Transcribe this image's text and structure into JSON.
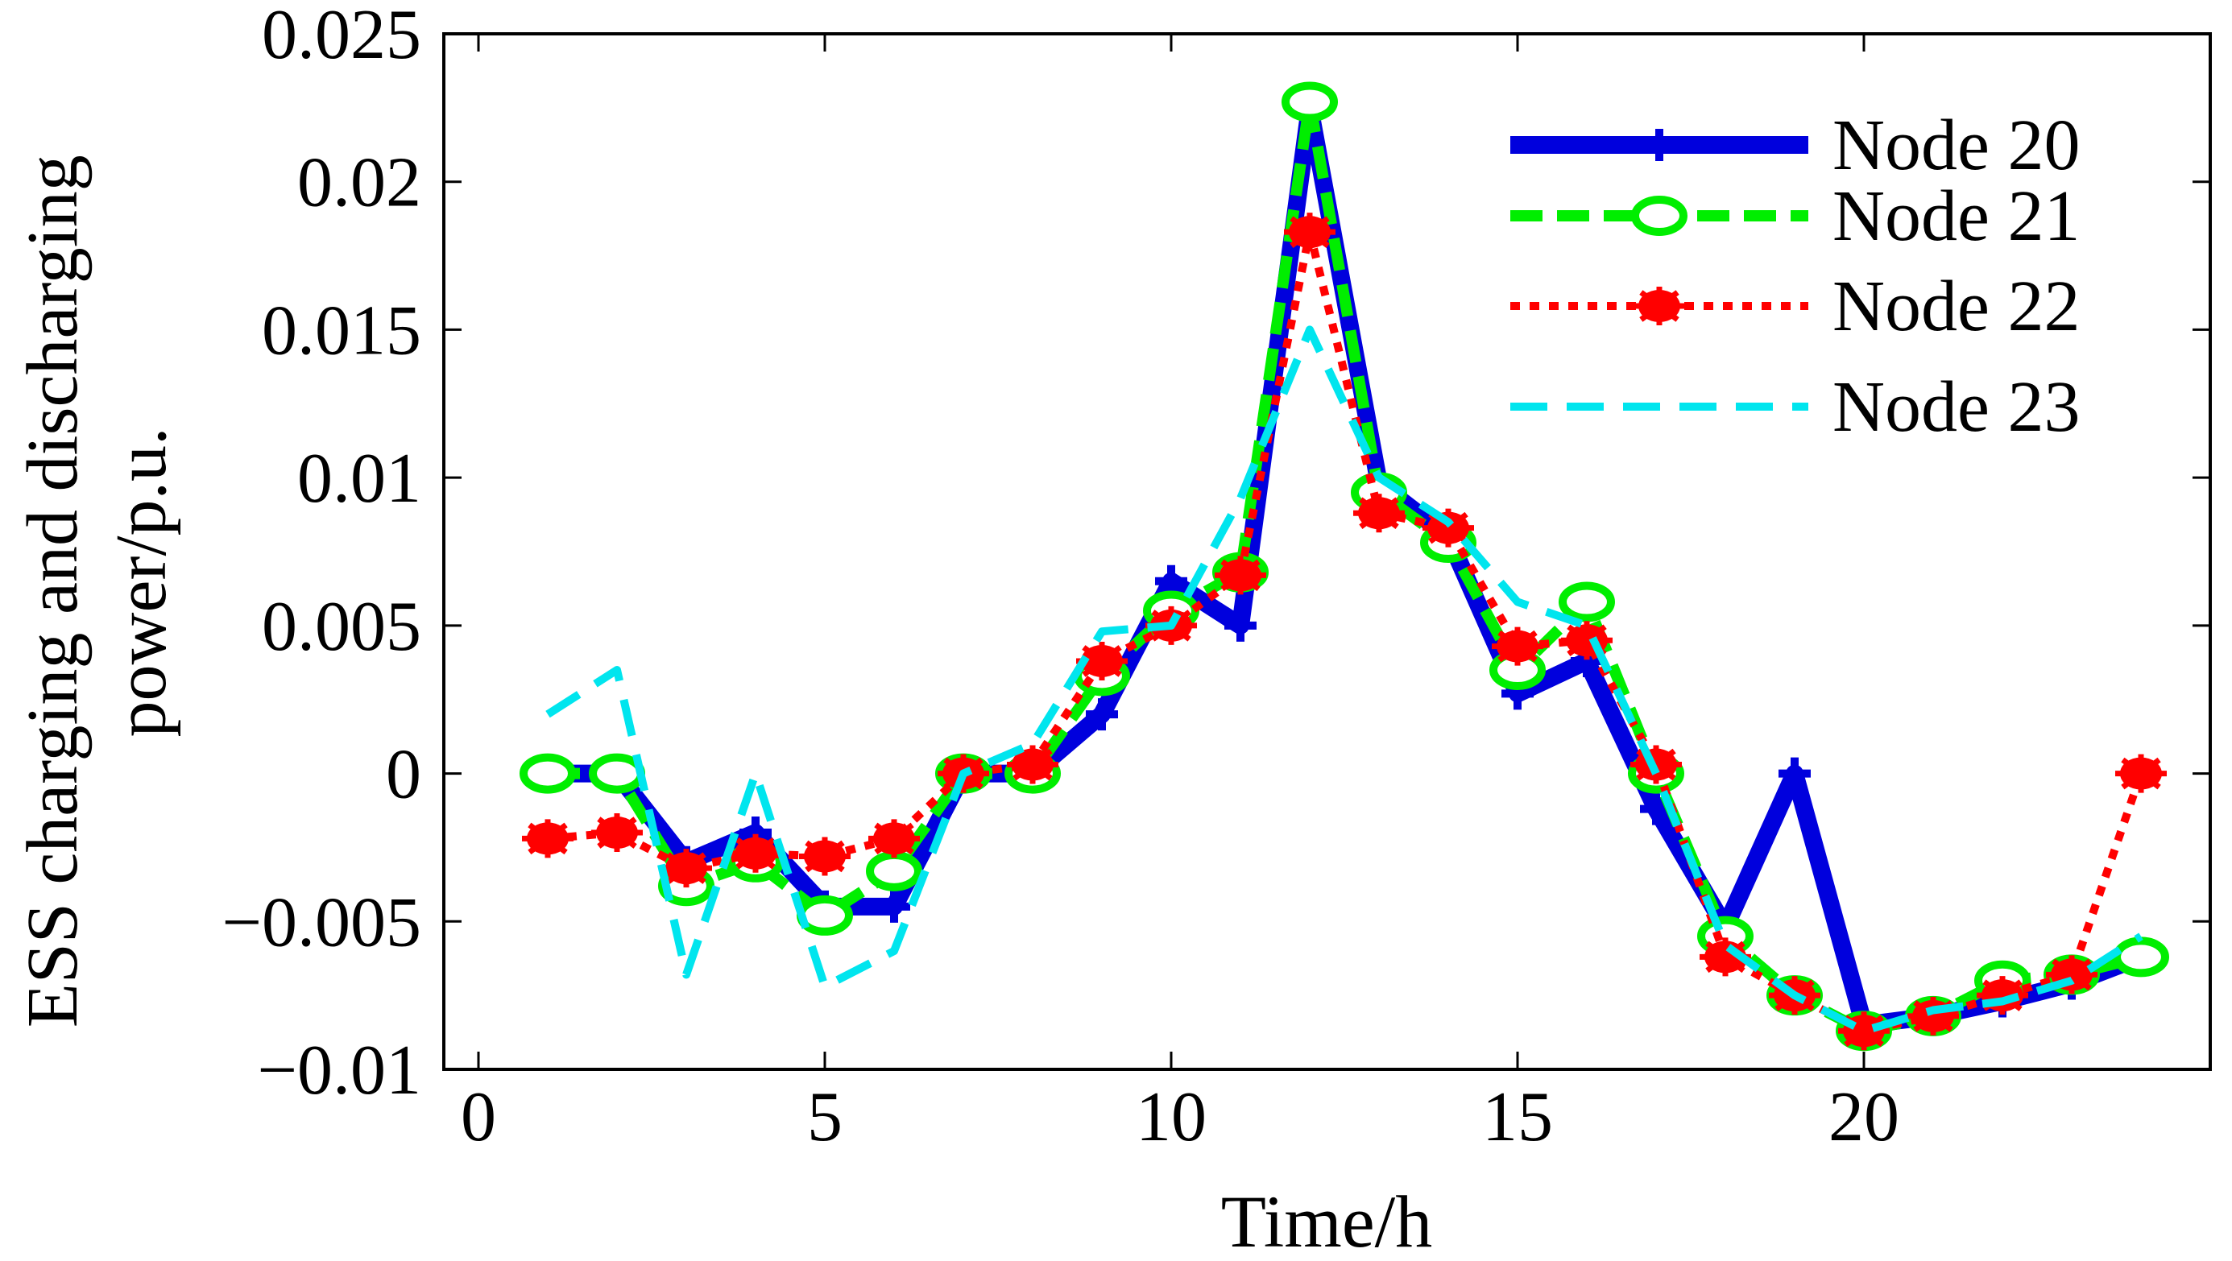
{
  "chart_data": {
    "type": "line",
    "xlabel": "Time/h",
    "ylabel_lines": [
      "ESS charging and discharging",
      "power/p.u."
    ],
    "xlim": [
      -0.5,
      25
    ],
    "ylim": [
      -0.01,
      0.025
    ],
    "xticks": [
      0,
      5,
      10,
      15,
      20
    ],
    "xtick_labels": [
      "0",
      "5",
      "10",
      "15",
      "20"
    ],
    "yticks": [
      -0.01,
      -0.005,
      0,
      0.005,
      0.01,
      0.015,
      0.02,
      0.025
    ],
    "ytick_labels": [
      "−0.01",
      "−0.005",
      "0",
      "0.005",
      "0.01",
      "0.015",
      "0.02",
      "0.025"
    ],
    "legend_position": "top-right",
    "series": [
      {
        "name": "Node 20",
        "color": "#0000dd",
        "marker": "plus",
        "dash": "solid",
        "x": [
          1,
          2,
          3,
          4,
          5,
          6,
          7,
          8,
          9,
          10,
          11,
          12,
          13,
          14,
          15,
          16,
          17,
          18,
          19,
          20,
          21,
          22,
          23,
          24
        ],
        "values": [
          0.0,
          0.0,
          -0.003,
          -0.002,
          -0.0045,
          -0.0045,
          0.0,
          0.0,
          0.002,
          0.0065,
          0.005,
          0.0225,
          0.0098,
          0.008,
          0.0027,
          0.0038,
          -0.0012,
          -0.0052,
          0.0,
          -0.0085,
          -0.0082,
          -0.0077,
          -0.0071,
          -0.0062
        ]
      },
      {
        "name": "Node 21",
        "color": "#00ee00",
        "marker": "circle",
        "dash": "dash",
        "x": [
          1,
          2,
          3,
          4,
          5,
          6,
          7,
          8,
          9,
          10,
          11,
          12,
          13,
          14,
          15,
          16,
          17,
          18,
          19,
          20,
          21,
          22,
          23,
          24
        ],
        "values": [
          0.0,
          0.0,
          -0.0038,
          -0.003,
          -0.0048,
          -0.0033,
          0.0,
          0.0,
          0.0033,
          0.0055,
          0.0068,
          0.0227,
          0.0095,
          0.0078,
          0.0035,
          0.0058,
          0.0,
          -0.0055,
          -0.0075,
          -0.0087,
          -0.0082,
          -0.007,
          -0.0068,
          -0.0062
        ]
      },
      {
        "name": "Node 22",
        "color": "#ff0000",
        "marker": "asterisk",
        "dash": "dot",
        "x": [
          1,
          2,
          3,
          4,
          5,
          6,
          7,
          8,
          9,
          10,
          11,
          12,
          13,
          14,
          15,
          16,
          17,
          18,
          19,
          20,
          21,
          22,
          23,
          24
        ],
        "values": [
          -0.0022,
          -0.002,
          -0.0032,
          -0.0027,
          -0.0028,
          -0.0022,
          0.0,
          0.0003,
          0.0038,
          0.005,
          0.0067,
          0.0183,
          0.0088,
          0.0083,
          0.0043,
          0.0045,
          0.0003,
          -0.0062,
          -0.0075,
          -0.0087,
          -0.0082,
          -0.0075,
          -0.0068,
          0.0
        ]
      },
      {
        "name": "Node 23",
        "color": "#00e5ee",
        "marker": "none",
        "dash": "longdash",
        "x": [
          1,
          2,
          3,
          4,
          5,
          6,
          7,
          8,
          9,
          10,
          11,
          12,
          13,
          14,
          15,
          16,
          17,
          18,
          19,
          20,
          21,
          22,
          23,
          24
        ],
        "values": [
          0.002,
          0.0035,
          -0.0068,
          0.0,
          -0.0072,
          -0.006,
          0.0,
          0.001,
          0.0048,
          0.005,
          0.0093,
          0.015,
          0.01,
          0.0085,
          0.0058,
          0.005,
          0.0,
          -0.0058,
          -0.0075,
          -0.0087,
          -0.008,
          -0.0077,
          -0.007,
          -0.0055
        ]
      }
    ]
  }
}
